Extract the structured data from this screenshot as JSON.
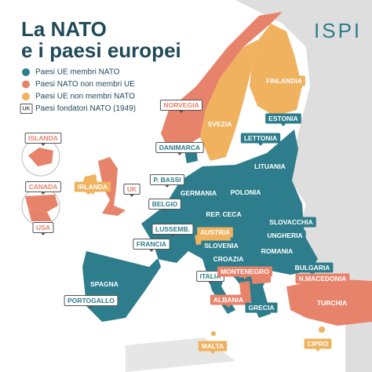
{
  "title": [
    "La NATO",
    "e i paesi europei"
  ],
  "logo": "ISPI",
  "legend": [
    {
      "label": "Paesi UE membri NATO",
      "color": "#2e7d8c"
    },
    {
      "label": "Paesi NATO non membri UE",
      "color": "#e8836b"
    },
    {
      "label": "Paesi UE non membri NATO",
      "color": "#f0b25e"
    }
  ],
  "founders_legend": {
    "badge": "UK",
    "label": "Paesi fondatori NATO (1949)"
  },
  "countries": [
    {
      "label": "NORVEGIA",
      "group": 1,
      "founder": true
    },
    {
      "label": "SVEZIA",
      "group": 2,
      "founder": false
    },
    {
      "label": "FINLANDIA",
      "group": 2,
      "founder": false
    },
    {
      "label": "ESTONIA",
      "group": 0,
      "founder": false
    },
    {
      "label": "LETTONIA",
      "group": 0,
      "founder": false
    },
    {
      "label": "LITUANIA",
      "group": 0,
      "founder": false
    },
    {
      "label": "DANIMARCA",
      "group": 0,
      "founder": true
    },
    {
      "label": "ISLANDA",
      "group": 1,
      "founder": true
    },
    {
      "label": "CANADA",
      "group": 1,
      "founder": true
    },
    {
      "label": "USA",
      "group": 1,
      "founder": true
    },
    {
      "label": "IRLANDA",
      "group": 2,
      "founder": false
    },
    {
      "label": "UK",
      "group": 1,
      "founder": true
    },
    {
      "label": "P. BASSI",
      "group": 0,
      "founder": true
    },
    {
      "label": "BELGIO",
      "group": 0,
      "founder": true
    },
    {
      "label": "GERMANIA",
      "group": 0,
      "founder": false
    },
    {
      "label": "POLONIA",
      "group": 0,
      "founder": false
    },
    {
      "label": "REP. CECA",
      "group": 0,
      "founder": false
    },
    {
      "label": "SLOVACCHIA",
      "group": 0,
      "founder": false
    },
    {
      "label": "LUSSEMB.",
      "group": 0,
      "founder": true
    },
    {
      "label": "AUSTRIA",
      "group": 2,
      "founder": false
    },
    {
      "label": "UNGHERIA",
      "group": 0,
      "founder": false
    },
    {
      "label": "SLOVENIA",
      "group": 0,
      "founder": false
    },
    {
      "label": "FRANCIA",
      "group": 0,
      "founder": true
    },
    {
      "label": "CROAZIA",
      "group": 0,
      "founder": false
    },
    {
      "label": "ROMANIA",
      "group": 0,
      "founder": false
    },
    {
      "label": "ITALIA",
      "group": 0,
      "founder": true
    },
    {
      "label": "MONTENEGRO",
      "group": 1,
      "founder": false
    },
    {
      "label": "BULGARIA",
      "group": 0,
      "founder": false
    },
    {
      "label": "N.MACEDONIA",
      "group": 1,
      "founder": false
    },
    {
      "label": "SPAGNA",
      "group": 0,
      "founder": false
    },
    {
      "label": "PORTOGALLO",
      "group": 0,
      "founder": true
    },
    {
      "label": "ALBANIA",
      "group": 1,
      "founder": false
    },
    {
      "label": "GRECIA",
      "group": 0,
      "founder": false
    },
    {
      "label": "TURCHIA",
      "group": 1,
      "founder": false
    },
    {
      "label": "MALTA",
      "group": 2,
      "founder": false
    },
    {
      "label": "CIPRO",
      "group": 2,
      "founder": false
    }
  ]
}
